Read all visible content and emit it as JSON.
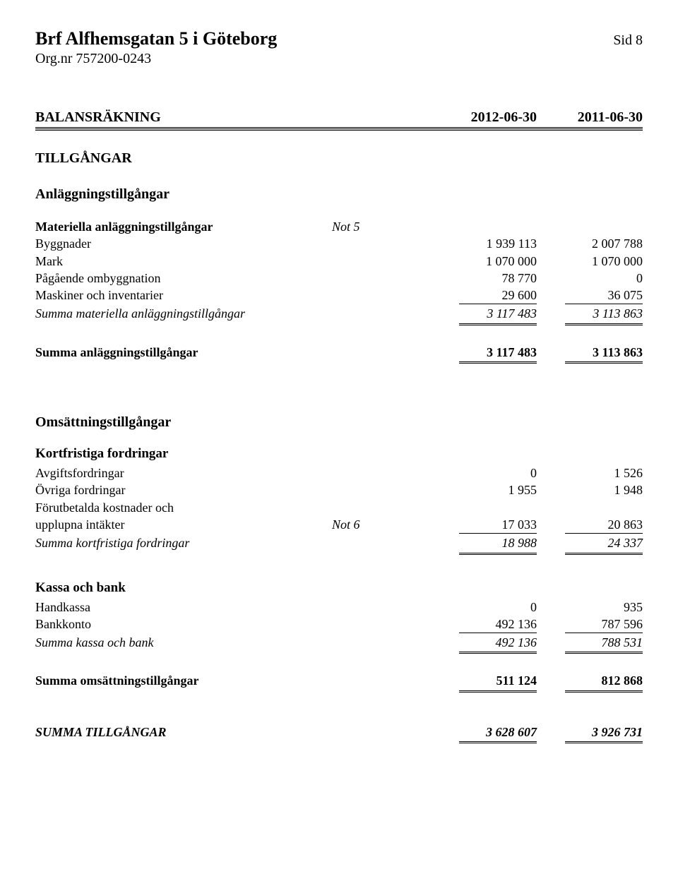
{
  "header": {
    "org_title": "Brf Alfhemsgatan 5 i Göteborg",
    "page_no": "Sid 8",
    "org_nr": "Org.nr 757200-0243"
  },
  "title_row": {
    "label": "BALANSRÄKNING",
    "col_a": "2012-06-30",
    "col_b": "2011-06-30"
  },
  "s_tillgangar": "TILLGÅNGAR",
  "s_anlaggning": "Anläggningstillgångar",
  "s_materiella": {
    "heading": "Materiella anläggningstillgångar",
    "note": "Not 5"
  },
  "rows_mat": {
    "byggnader": {
      "label": "Byggnader",
      "a": "1 939 113",
      "b": "2 007 788"
    },
    "mark": {
      "label": "Mark",
      "a": "1 070 000",
      "b": "1 070 000"
    },
    "pagaende": {
      "label": "Pågående ombyggnation",
      "a": "78 770",
      "b": "0"
    },
    "maskiner": {
      "label": "Maskiner och inventarier",
      "a": "29 600",
      "b": "36 075"
    }
  },
  "sum_mat": {
    "label": "Summa materiella anläggningstillgångar",
    "a": "3 117 483",
    "b": "3 113 863"
  },
  "sum_anl": {
    "label": "Summa anläggningstillgångar",
    "a": "3 117 483",
    "b": "3 113 863"
  },
  "s_omsattning": "Omsättningstillgångar",
  "s_kortfrist": "Kortfristiga fordringar",
  "rows_kort": {
    "avgift": {
      "label": "Avgiftsfordringar",
      "a": "0",
      "b": "1 526"
    },
    "ovriga": {
      "label": "Övriga fordringar",
      "a": "1 955",
      "b": "1 948"
    },
    "forut1": {
      "label": "Förutbetalda kostnader och"
    },
    "forut2": {
      "label": " upplupna intäkter",
      "note": "Not 6",
      "a": "17 033",
      "b": "20 863"
    }
  },
  "sum_kort": {
    "label": "Summa kortfristiga fordringar",
    "a": "18 988",
    "b": "24 337"
  },
  "s_kassa": "Kassa och bank",
  "rows_kassa": {
    "hand": {
      "label": "Handkassa",
      "a": "0",
      "b": "935"
    },
    "bank": {
      "label": "Bankkonto",
      "a": "492 136",
      "b": "787 596"
    }
  },
  "sum_kassa": {
    "label": "Summa kassa och bank",
    "a": "492 136",
    "b": "788 531"
  },
  "sum_oms": {
    "label": "Summa omsättningstillgångar",
    "a": "511 124",
    "b": "812 868"
  },
  "sum_tillg": {
    "label": "SUMMA TILLGÅNGAR",
    "a": "3 628 607",
    "b": "3 926 731"
  }
}
